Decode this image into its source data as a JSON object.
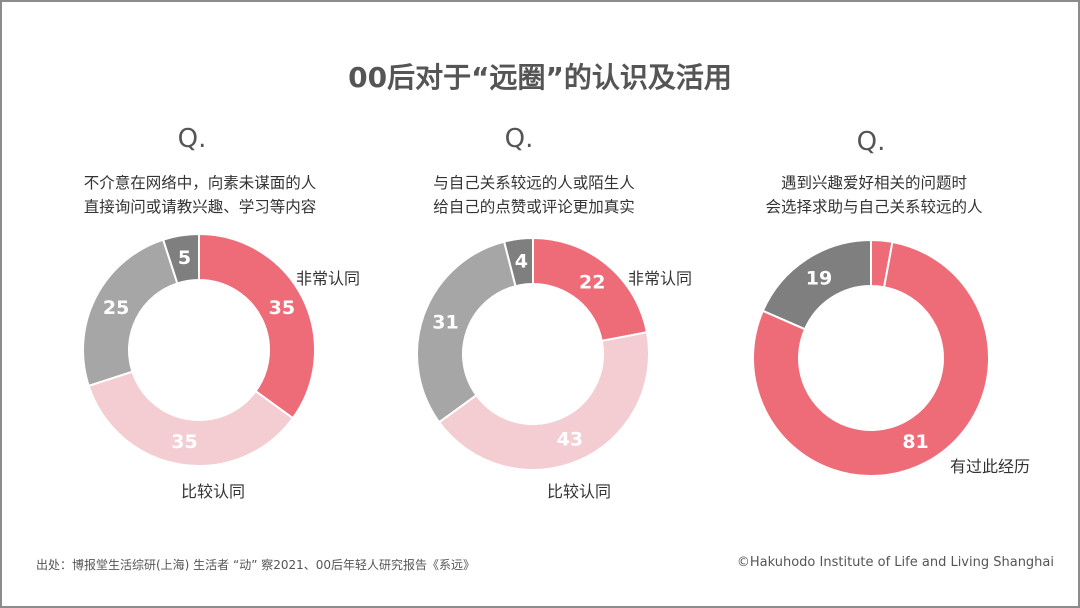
{
  "title": "00后对于“远圈”的认识及活用",
  "footer": {
    "source": "出处：博报堂生活综研(上海) 生活者 “动” 察2021、00后年轻人研究报告《系远》",
    "copyright": "©Hakuhodo Institute of Life and Living Shanghai"
  },
  "colors": {
    "pink_strong": "#ee6b78",
    "pink_light": "#f4cdd3",
    "gray_mid": "#a6a6a6",
    "gray_dark": "#7f7f7f",
    "text": "#333333"
  },
  "charts": [
    {
      "q_label": "Q.",
      "question_lines": [
        "不介意在网络中，向素未谋面的人",
        "直接询问或请教兴趣、学习等内容"
      ]
    },
    {
      "q_label": "Q.",
      "question_lines": [
        "与自己关系较远的人或陌生人",
        "给自己的点赞或评论更加真实"
      ]
    },
    {
      "q_label": "Q.",
      "question_lines": [
        "遇到兴趣爱好相关的问题时",
        "会选择求助与自己关系较远的人"
      ]
    }
  ],
  "chart_data": [
    {
      "type": "pie",
      "categories": [
        "非常认同",
        "比较认同",
        "",
        ""
      ],
      "values": [
        35,
        35,
        25,
        5
      ],
      "colors": [
        "#ee6b78",
        "#f4cdd3",
        "#a6a6a6",
        "#7f7f7f"
      ],
      "visible_labels": [
        "35",
        "35",
        "25",
        "5"
      ],
      "title": "",
      "legend": "annotations beside slices"
    },
    {
      "type": "pie",
      "categories": [
        "非常认同",
        "比较认同",
        "",
        ""
      ],
      "values": [
        22,
        43,
        31,
        4
      ],
      "colors": [
        "#ee6b78",
        "#f4cdd3",
        "#a6a6a6",
        "#7f7f7f"
      ],
      "visible_labels": [
        "22",
        "43",
        "31",
        "4"
      ],
      "title": "",
      "legend": "annotations beside slices"
    },
    {
      "type": "pie",
      "categories": [
        "",
        "有过此经历",
        ""
      ],
      "values": [
        3,
        81,
        19
      ],
      "colors": [
        "#ee6b78",
        "#ee6b78",
        "#7f7f7f"
      ],
      "visible_labels": [
        "",
        "81",
        "19"
      ],
      "title": "",
      "legend": "annotation beside slice"
    }
  ]
}
